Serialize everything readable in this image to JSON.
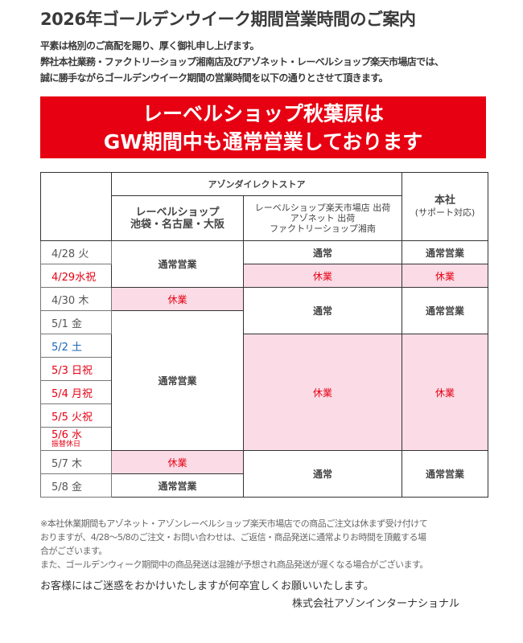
{
  "title": "2026年ゴールデンウイーク期間営業時間のご案内",
  "intro": [
    "平素は格別のご高配を賜り、厚く御礼申し上げます。",
    "弊社本社業務・ファクトリーショップ湘南店及びアゾネット・レーベルショップ楽天市場店では、",
    "誠に勝手ながらゴールデンウイーク期間の営業時間を以下の通りとさせて頂きます。"
  ],
  "banner": [
    "レーベルショップ秋葉原は",
    "GW期間中も通常営業しております"
  ],
  "colors": {
    "banner": "#e60012",
    "closed_bg": "#fadbe6",
    "holiday": "#e60012",
    "saturday": "#1a66b3"
  },
  "table": {
    "group_header": "アゾンダイレクトストア",
    "col1": [
      "レーベルショップ",
      "池袋・名古屋・大阪"
    ],
    "col2": [
      "レーベルショップ楽天市場店 出荷",
      "アゾネット 出荷",
      "ファクトリーショップ湘南"
    ],
    "col3": [
      "本社",
      "(サポート対応)"
    ],
    "dates": [
      "4/28 火",
      "4/29水祝",
      "4/30 木",
      "5/1 金",
      "5/2 土",
      "5/3 日祝",
      "5/4 月祝",
      "5/5 火祝",
      "5/6 水",
      "5/7 木",
      "5/8 金"
    ],
    "date_note": "振替休日",
    "open": "通常営業",
    "normal": "通常",
    "closed": "休業"
  },
  "notes": [
    "※本社休業期間もアゾネット・アゾンレーベルショップ楽天市場店での商品ご注文は休まず受け付けて",
    "おりますが、4/28～5/8のご注文・お問い合わせは、ご返信・商品発送に通常よりお時間を頂戴する場",
    "合がございます。",
    "また、ゴールデンウィーク期間中の商品発送は混雑が予想され商品発送が遅くなる場合がございます。"
  ],
  "closing": "お客様にはご迷惑をおかけいたしますが何卒宜しくお願いいたします。",
  "company": "株式会社アゾンインターナショナル"
}
